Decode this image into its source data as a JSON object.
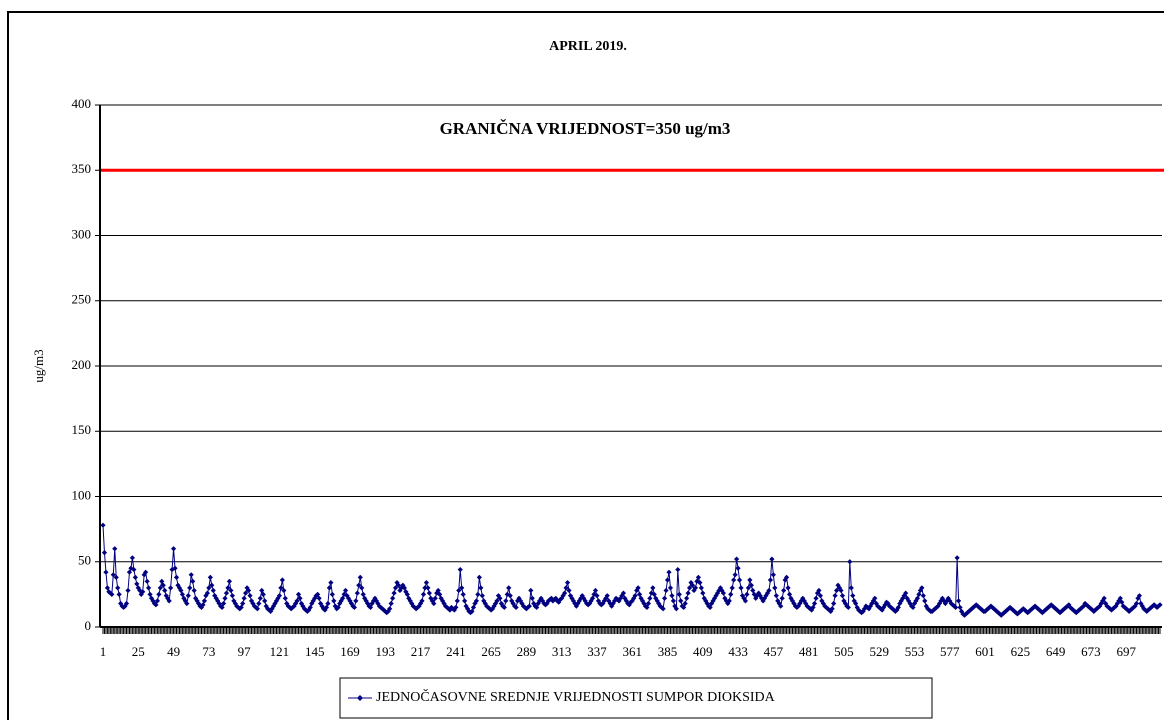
{
  "chart_data": {
    "type": "line",
    "title": "APRIL 2019.",
    "ylabel": "ug/m3",
    "color": "#000080",
    "grid": true,
    "legend": "bottom",
    "reference_line": {
      "value": 350,
      "color": "#ff0000",
      "label": "GRANIČNA VRIJEDNOST=350 ug/m3"
    },
    "ylim": [
      0,
      400
    ],
    "yticks": [
      0,
      50,
      100,
      150,
      200,
      250,
      300,
      350,
      400
    ],
    "xlim": [
      1,
      720
    ],
    "xticks": [
      1,
      25,
      49,
      73,
      97,
      121,
      145,
      169,
      193,
      217,
      241,
      265,
      289,
      313,
      337,
      361,
      385,
      409,
      433,
      457,
      481,
      505,
      529,
      553,
      577,
      601,
      625,
      649,
      673,
      697
    ],
    "x": [
      1,
      2,
      3,
      4,
      5,
      6,
      7,
      8,
      9,
      10,
      11,
      12,
      13,
      14,
      15,
      16,
      17,
      18,
      19,
      20,
      21,
      22,
      23,
      24,
      25,
      26,
      27,
      28,
      29,
      30,
      31,
      32,
      33,
      34,
      35,
      36,
      37,
      38,
      39,
      40,
      41,
      42,
      43,
      44,
      45,
      46,
      47,
      48,
      49,
      50,
      51,
      52,
      53,
      54,
      55,
      56,
      57,
      58,
      59,
      60,
      61,
      62,
      63,
      64,
      65,
      66,
      67,
      68,
      69,
      70,
      71,
      72,
      73,
      74,
      75,
      76,
      77,
      78,
      79,
      80,
      81,
      82,
      83,
      84,
      85,
      86,
      87,
      88,
      89,
      90,
      91,
      92,
      93,
      94,
      95,
      96,
      97,
      98,
      99,
      100,
      101,
      102,
      103,
      104,
      105,
      106,
      107,
      108,
      109,
      110,
      111,
      112,
      113,
      114,
      115,
      116,
      117,
      118,
      119,
      120,
      121,
      122,
      123,
      124,
      125,
      126,
      127,
      128,
      129,
      130,
      131,
      132,
      133,
      134,
      135,
      136,
      137,
      138,
      139,
      140,
      141,
      142,
      143,
      144,
      145,
      146,
      147,
      148,
      149,
      150,
      151,
      152,
      153,
      154,
      155,
      156,
      157,
      158,
      159,
      160,
      161,
      162,
      163,
      164,
      165,
      166,
      167,
      168,
      169,
      170,
      171,
      172,
      173,
      174,
      175,
      176,
      177,
      178,
      179,
      180,
      181,
      182,
      183,
      184,
      185,
      186,
      187,
      188,
      189,
      190,
      191,
      192,
      193,
      194,
      195,
      196,
      197,
      198,
      199,
      200,
      201,
      202,
      203,
      204,
      205,
      206,
      207,
      208,
      209,
      210,
      211,
      212,
      213,
      214,
      215,
      216,
      217,
      218,
      219,
      220,
      221,
      222,
      223,
      224,
      225,
      226,
      227,
      228,
      229,
      230,
      231,
      232,
      233,
      234,
      235,
      236,
      237,
      238,
      239,
      240,
      241,
      242,
      243,
      244,
      245,
      246,
      247,
      248,
      249,
      250,
      251,
      252,
      253,
      254,
      255,
      256,
      257,
      258,
      259,
      260,
      261,
      262,
      263,
      264,
      265,
      266,
      267,
      268,
      269,
      270,
      271,
      272,
      273,
      274,
      275,
      276,
      277,
      278,
      279,
      280,
      281,
      282,
      283,
      284,
      285,
      286,
      287,
      288,
      289,
      290,
      291,
      292,
      293,
      294,
      295,
      296,
      297,
      298,
      299,
      300,
      301,
      302,
      303,
      304,
      305,
      306,
      307,
      308,
      309,
      310,
      311,
      312,
      313,
      314,
      315,
      316,
      317,
      318,
      319,
      320,
      321,
      322,
      323,
      324,
      325,
      326,
      327,
      328,
      329,
      330,
      331,
      332,
      333,
      334,
      335,
      336,
      337,
      338,
      339,
      340,
      341,
      342,
      343,
      344,
      345,
      346,
      347,
      348,
      349,
      350,
      351,
      352,
      353,
      354,
      355,
      356,
      357,
      358,
      359,
      360,
      361,
      362,
      363,
      364,
      365,
      366,
      367,
      368,
      369,
      370,
      371,
      372,
      373,
      374,
      375,
      376,
      377,
      378,
      379,
      380,
      381,
      382,
      383,
      384,
      385,
      386,
      387,
      388,
      389,
      390,
      391,
      392,
      393,
      394,
      395,
      396,
      397,
      398,
      399,
      400,
      401,
      402,
      403,
      404,
      405,
      406,
      407,
      408,
      409,
      410,
      411,
      412,
      413,
      414,
      415,
      416,
      417,
      418,
      419,
      420,
      421,
      422,
      423,
      424,
      425,
      426,
      427,
      428,
      429,
      430,
      431,
      432,
      433,
      434,
      435,
      436,
      437,
      438,
      439,
      440,
      441,
      442,
      443,
      444,
      445,
      446,
      447,
      448,
      449,
      450,
      451,
      452,
      453,
      454,
      455,
      456,
      457,
      458,
      459,
      460,
      461,
      462,
      463,
      464,
      465,
      466,
      467,
      468,
      469,
      470,
      471,
      472,
      473,
      474,
      475,
      476,
      477,
      478,
      479,
      480,
      481,
      482,
      483,
      484,
      485,
      486,
      487,
      488,
      489,
      490,
      491,
      492,
      493,
      494,
      495,
      496,
      497,
      498,
      499,
      500,
      501,
      502,
      503,
      504,
      505,
      506,
      507,
      508,
      509,
      510,
      511,
      512,
      513,
      514,
      515,
      516,
      517,
      518,
      519,
      520,
      521,
      522,
      523,
      524,
      525,
      526,
      527,
      528,
      529,
      530,
      531,
      532,
      533,
      534,
      535,
      536,
      537,
      538,
      539,
      540,
      541,
      542,
      543,
      544,
      545,
      546,
      547,
      548,
      549,
      550,
      551,
      552,
      553,
      554,
      555,
      556,
      557,
      558,
      559,
      560,
      561,
      562,
      563,
      564,
      565,
      566,
      567,
      568,
      569,
      570,
      571,
      572,
      573,
      574,
      575,
      576,
      577,
      578,
      579,
      580,
      581,
      582,
      583,
      584,
      585,
      586,
      587,
      588,
      589,
      590,
      591,
      592,
      593,
      594,
      595,
      596,
      597,
      598,
      599,
      600,
      601,
      602,
      603,
      604,
      605,
      606,
      607,
      608,
      609,
      610,
      611,
      612,
      613,
      614,
      615,
      616,
      617,
      618,
      619,
      620,
      621,
      622,
      623,
      624,
      625,
      626,
      627,
      628,
      629,
      630,
      631,
      632,
      633,
      634,
      635,
      636,
      637,
      638,
      639,
      640,
      641,
      642,
      643,
      644,
      645,
      646,
      647,
      648,
      649,
      650,
      651,
      652,
      653,
      654,
      655,
      656,
      657,
      658,
      659,
      660,
      661,
      662,
      663,
      664,
      665,
      666,
      667,
      668,
      669,
      670,
      671,
      672,
      673,
      674,
      675,
      676,
      677,
      678,
      679,
      680,
      681,
      682,
      683,
      684,
      685,
      686,
      687,
      688,
      689,
      690,
      691,
      692,
      693,
      694,
      695,
      696,
      697,
      698,
      699,
      700,
      701,
      702,
      703,
      704,
      705,
      706,
      707,
      708,
      709,
      710,
      711,
      712,
      713,
      714,
      715,
      716,
      717,
      718,
      719,
      720
    ],
    "series": [
      {
        "name": "JEDNOČASOVNE SREDNJE VRIJEDNOSTI SUMPOR DIOKSIDA",
        "color": "#000080",
        "values": [
          78,
          57,
          42,
          30,
          27,
          26,
          25,
          40,
          60,
          38,
          30,
          25,
          18,
          16,
          15,
          16,
          18,
          28,
          42,
          45,
          53,
          44,
          38,
          33,
          30,
          28,
          25,
          27,
          40,
          42,
          35,
          30,
          25,
          22,
          20,
          18,
          17,
          20,
          25,
          30,
          35,
          32,
          28,
          24,
          22,
          20,
          30,
          44,
          60,
          45,
          38,
          32,
          30,
          28,
          25,
          22,
          20,
          18,
          24,
          30,
          40,
          35,
          28,
          22,
          20,
          18,
          16,
          15,
          17,
          20,
          24,
          26,
          30,
          38,
          32,
          28,
          24,
          22,
          20,
          18,
          16,
          15,
          18,
          22,
          26,
          30,
          35,
          28,
          24,
          20,
          18,
          16,
          15,
          14,
          15,
          18,
          22,
          26,
          30,
          28,
          24,
          20,
          18,
          16,
          15,
          14,
          18,
          22,
          28,
          25,
          20,
          16,
          14,
          13,
          12,
          14,
          16,
          18,
          20,
          22,
          24,
          30,
          36,
          28,
          22,
          18,
          16,
          15,
          14,
          15,
          16,
          18,
          20,
          25,
          22,
          18,
          16,
          14,
          13,
          12,
          13,
          15,
          18,
          20,
          22,
          24,
          25,
          22,
          18,
          16,
          14,
          13,
          15,
          18,
          30,
          34,
          25,
          20,
          16,
          14,
          15,
          18,
          20,
          22,
          25,
          28,
          24,
          22,
          20,
          18,
          16,
          15,
          20,
          26,
          32,
          38,
          30,
          25,
          22,
          20,
          18,
          16,
          15,
          18,
          20,
          22,
          20,
          18,
          16,
          15,
          14,
          13,
          12,
          11,
          12,
          14,
          18,
          22,
          26,
          30,
          34,
          32,
          28,
          30,
          32,
          30,
          27,
          25,
          22,
          20,
          18,
          16,
          15,
          14,
          15,
          16,
          18,
          20,
          25,
          30,
          34,
          30,
          26,
          22,
          20,
          18,
          22,
          26,
          28,
          25,
          22,
          20,
          18,
          16,
          15,
          14,
          13,
          15,
          14,
          13,
          15,
          20,
          28,
          44,
          30,
          25,
          20,
          16,
          14,
          12,
          11,
          12,
          15,
          18,
          20,
          25,
          38,
          30,
          24,
          20,
          18,
          16,
          15,
          14,
          13,
          14,
          16,
          18,
          20,
          24,
          22,
          18,
          16,
          15,
          20,
          25,
          30,
          24,
          20,
          18,
          16,
          15,
          20,
          22,
          20,
          18,
          16,
          15,
          14,
          15,
          16,
          28,
          22,
          18,
          16,
          15,
          18,
          20,
          22,
          20,
          18,
          17,
          18,
          20,
          21,
          22,
          20,
          21,
          22,
          20,
          19,
          21,
          22,
          24,
          26,
          30,
          34,
          28,
          24,
          22,
          20,
          18,
          16,
          18,
          20,
          22,
          24,
          22,
          20,
          18,
          17,
          18,
          20,
          22,
          25,
          28,
          24,
          20,
          18,
          17,
          18,
          20,
          22,
          24,
          20,
          18,
          16,
          18,
          20,
          22,
          21,
          20,
          22,
          24,
          26,
          22,
          20,
          18,
          17,
          19,
          20,
          22,
          24,
          28,
          30,
          25,
          22,
          20,
          18,
          16,
          15,
          18,
          22,
          26,
          30,
          25,
          22,
          20,
          18,
          16,
          15,
          14,
          22,
          28,
          36,
          42,
          30,
          24,
          20,
          16,
          14,
          44,
          25,
          20,
          16,
          15,
          18,
          22,
          26,
          30,
          34,
          32,
          28,
          30,
          35,
          38,
          34,
          30,
          26,
          22,
          20,
          18,
          16,
          15,
          18,
          20,
          22,
          24,
          26,
          28,
          30,
          28,
          26,
          22,
          20,
          18,
          20,
          25,
          30,
          36,
          40,
          52,
          45,
          36,
          30,
          24,
          22,
          20,
          25,
          30,
          36,
          32,
          28,
          25,
          22,
          24,
          26,
          24,
          22,
          20,
          22,
          24,
          26,
          28,
          36,
          52,
          40,
          30,
          24,
          20,
          18,
          16,
          22,
          28,
          36,
          38,
          30,
          25,
          22,
          20,
          18,
          16,
          15,
          16,
          18,
          20,
          22,
          20,
          18,
          16,
          15,
          14,
          13,
          15,
          18,
          22,
          26,
          28,
          24,
          20,
          18,
          16,
          15,
          14,
          13,
          12,
          14,
          18,
          24,
          28,
          32,
          30,
          28,
          24,
          20,
          18,
          16,
          15,
          50,
          30,
          24,
          20,
          18,
          15,
          13,
          12,
          11,
          12,
          14,
          16,
          15,
          14,
          16,
          18,
          20,
          22,
          18,
          16,
          15,
          14,
          13,
          15,
          17,
          19,
          18,
          16,
          15,
          14,
          13,
          12,
          13,
          15,
          18,
          20,
          22,
          24,
          26,
          22,
          20,
          18,
          16,
          15,
          18,
          20,
          22,
          25,
          28,
          30,
          24,
          20,
          16,
          14,
          13,
          12,
          12,
          13,
          14,
          15,
          16,
          18,
          20,
          22,
          20,
          18,
          20,
          22,
          20,
          18,
          17,
          16,
          15,
          53,
          20,
          15,
          12,
          10,
          9,
          10,
          11,
          12,
          13,
          14,
          15,
          16,
          17,
          16,
          15,
          14,
          13,
          12,
          12,
          13,
          14,
          15,
          16,
          15,
          14,
          13,
          12,
          11,
          10,
          9,
          10,
          11,
          12,
          13,
          14,
          15,
          14,
          13,
          12,
          11,
          10,
          11,
          12,
          13,
          14,
          13,
          12,
          11,
          12,
          13,
          14,
          15,
          16,
          15,
          14,
          13,
          12,
          11,
          12,
          13,
          14,
          15,
          16,
          17,
          16,
          15,
          14,
          13,
          12,
          11,
          12,
          13,
          14,
          15,
          16,
          17,
          15,
          14,
          13,
          12,
          11,
          12,
          13,
          14,
          15,
          16,
          18,
          17,
          16,
          15,
          14,
          13,
          12,
          13,
          14,
          15,
          16,
          18,
          20,
          22,
          18,
          16,
          15,
          14,
          13,
          14,
          15,
          16,
          18,
          20,
          22,
          19,
          16,
          15,
          14,
          13,
          12,
          13,
          14,
          15,
          16,
          18,
          22,
          24,
          18,
          16,
          14,
          13,
          12,
          13,
          14,
          15,
          16,
          17,
          16,
          15,
          16,
          17
        ]
      }
    ]
  }
}
